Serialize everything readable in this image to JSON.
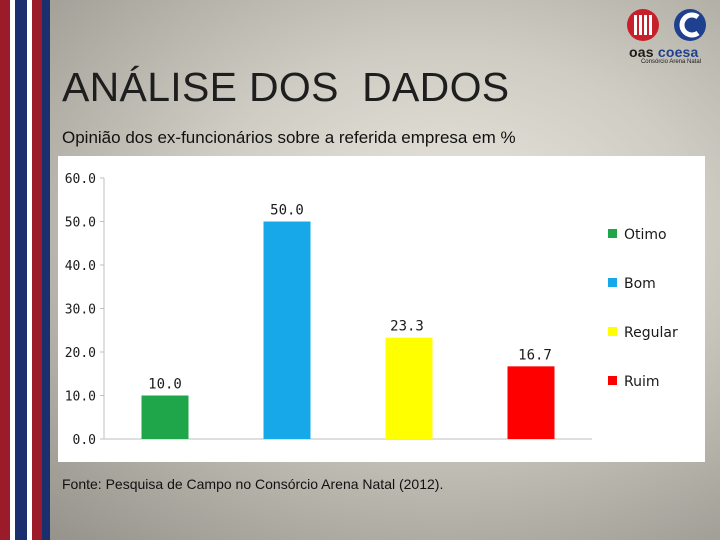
{
  "slide": {
    "title": "ANÁLISE DOS  DADOS",
    "subtitle": "Opinião dos ex-funcionários sobre a referida empresa em %",
    "source_label": "Fonte:",
    "source_text": " Pesquisa de Campo no Consórcio Arena Natal (2012)."
  },
  "logo": {
    "name_part1": "oas",
    "name_part2": "coesa",
    "tagline": "Consórcio Arena Natal",
    "colors": {
      "red": "#c8202a",
      "blue": "#1f3f8f",
      "dark": "#1a1a1a"
    }
  },
  "decor": {
    "stripe_colors": [
      "#9b1b2a",
      "#ffffff",
      "#1b2e6e",
      "#ffffff",
      "#9b1b2a",
      "#1b2e6e"
    ]
  },
  "chart_data": {
    "type": "bar",
    "categories": [
      "Otimo",
      "Bom",
      "Regular",
      "Ruim"
    ],
    "values": [
      10.0,
      50.0,
      23.3,
      16.7
    ],
    "value_labels": [
      "10.0",
      "50.0",
      "23.3",
      "16.7"
    ],
    "colors": [
      "#1fa64a",
      "#16a8e8",
      "#ffff00",
      "#ff0000"
    ],
    "title": "",
    "xlabel": "",
    "ylabel": "",
    "ylim": [
      0,
      60
    ],
    "yticks": [
      0,
      10,
      20,
      30,
      40,
      50,
      60
    ],
    "ytick_labels": [
      "0.0",
      "10.0",
      "20.0",
      "30.0",
      "40.0",
      "50.0",
      "60.0"
    ],
    "grid": false,
    "legend": {
      "position": "right",
      "entries": [
        "Otimo",
        "Bom",
        "Regular",
        "Ruim"
      ]
    }
  }
}
